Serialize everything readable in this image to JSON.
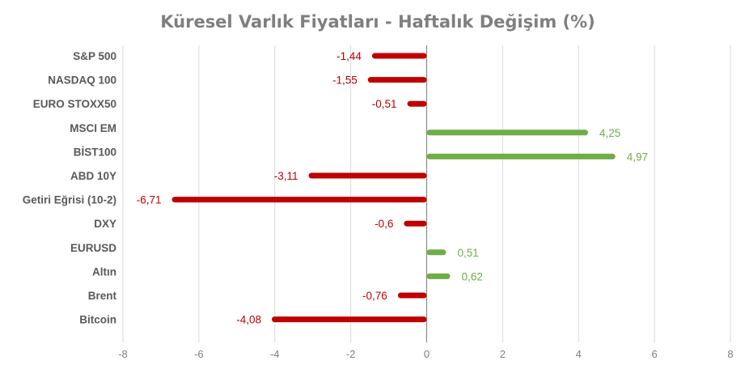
{
  "chart_data": {
    "type": "bar",
    "orientation": "horizontal",
    "title": "Küresel Varlık Fiyatları - Haftalık Değişim (%)",
    "categories": [
      "S&P 500",
      "NASDAQ 100",
      "EURO STOXX50",
      "MSCI EM",
      "BİST100",
      "ABD 10Y",
      "Getiri Eğrisi (10-2)",
      "DXY",
      "EURUSD",
      "Altın",
      "Brent",
      "Bitcoin"
    ],
    "values": [
      -1.44,
      -1.55,
      -0.51,
      4.25,
      4.97,
      -3.11,
      -6.71,
      -0.6,
      0.51,
      0.62,
      -0.76,
      -4.08
    ],
    "data_labels": [
      "-1,44",
      "-1,55",
      "-0,51",
      "4,25",
      "4,97",
      "-3,11",
      "-6,71",
      "-0,6",
      "0,51",
      "0,62",
      "-0,76",
      "-4,08"
    ],
    "xlim": [
      -8,
      8
    ],
    "xticks": [
      -8,
      -6,
      -4,
      -2,
      0,
      2,
      4,
      6,
      8
    ],
    "xtick_labels": [
      "-8",
      "-6",
      "-4",
      "-2",
      "0",
      "2",
      "4",
      "6",
      "8"
    ],
    "grid": "vertical",
    "legend": "none",
    "colors": {
      "positive": "#70ad47",
      "negative": "#c00000",
      "title": "#7f7f7f",
      "grid": "#d9d9d9",
      "axis": "#7f7f7f"
    }
  }
}
